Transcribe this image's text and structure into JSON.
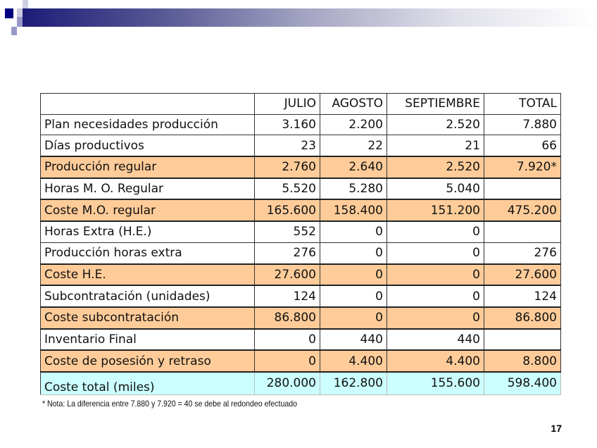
{
  "headers": [
    "",
    "JULIO",
    "AGOSTO",
    "SEPTIEMBRE",
    "TOTAL"
  ],
  "rows": [
    {
      "label": "Plan necesidades producción",
      "values": [
        "3.160",
        "2.200",
        "2.520",
        "7.880"
      ],
      "style": "plain"
    },
    {
      "label": "Días productivos",
      "values": [
        "23",
        "22",
        "21",
        "66"
      ],
      "style": "plain"
    },
    {
      "label": "Producción regular",
      "values": [
        "2.760",
        "2.640",
        "2.520",
        "7.920*"
      ],
      "style": "orange"
    },
    {
      "label": "Horas M. O. Regular",
      "values": [
        "5.520",
        "5.280",
        "5.040",
        ""
      ],
      "style": "plain"
    },
    {
      "label": "Coste M.O. regular",
      "values": [
        "165.600",
        "158.400",
        "151.200",
        "475.200"
      ],
      "style": "orange"
    },
    {
      "label": "Horas Extra (H.E.)",
      "values": [
        "552",
        "0",
        "0",
        ""
      ],
      "style": "plain"
    },
    {
      "label": "Producción horas extra",
      "values": [
        "276",
        "0",
        "0",
        "276"
      ],
      "style": "plain"
    },
    {
      "label": "Coste H.E.",
      "values": [
        "27.600",
        "0",
        "0",
        "27.600"
      ],
      "style": "orange"
    },
    {
      "label": "Subcontratación (unidades)",
      "values": [
        "124",
        "0",
        "0",
        "124"
      ],
      "style": "plain"
    },
    {
      "label": "Coste subcontratación",
      "values": [
        "86.800",
        "0",
        "0",
        "86.800"
      ],
      "style": "orange"
    },
    {
      "label": "Inventario Final",
      "values": [
        "0",
        "440",
        "440",
        ""
      ],
      "style": "plain"
    },
    {
      "label": "Coste de posesión y retraso",
      "values": [
        "0",
        "4.400",
        "4.400",
        "8.800"
      ],
      "style": "orange"
    },
    {
      "label": "Coste total (miles)",
      "values": [
        "280.000",
        "162.800",
        "155.600",
        "598.400"
      ],
      "style": "cyan"
    }
  ],
  "note": "* Nota: La diferencia entre 7.880 y 7.920 = 40  se debe al redondeo efectuado",
  "page_number": "17"
}
